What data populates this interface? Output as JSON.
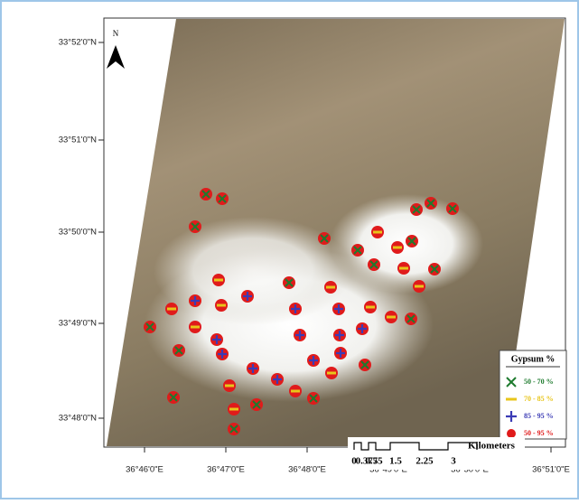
{
  "map": {
    "latitude_labels": [
      "33°52'0\"N",
      "33°51'0\"N",
      "33°50'0\"N",
      "33°49'0\"N",
      "33°48'0\"N"
    ],
    "longitude_labels": [
      "36°46'0\"E",
      "36°47'0\"E",
      "36°48'0\"E",
      "36°49'0\"E",
      "36°50'0\"E",
      "36°51'0\"E"
    ],
    "north_label": "N",
    "legend": {
      "title": "Gypsum %",
      "entries": [
        {
          "label": "50 - 70 %",
          "color": "#1e7b2e"
        },
        {
          "label": "70 - 85 %",
          "color": "#e8c51a"
        },
        {
          "label": "85 - 95 %",
          "color": "#3b3bb5"
        },
        {
          "label": "50 - 95 %",
          "color": "#e01b1b"
        }
      ]
    },
    "scale_bar": {
      "labels": [
        "0",
        "0.375",
        "0.75",
        "1.5",
        "2.25",
        "3"
      ],
      "unit": "Kilometers"
    }
  }
}
